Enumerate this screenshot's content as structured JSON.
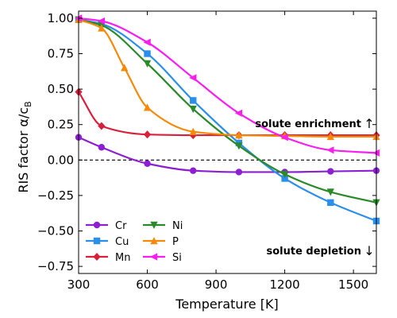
{
  "chart_data": {
    "type": "line",
    "xlabel": "Temperature [K]",
    "ylabel": "RIS factor α/c",
    "ylabel_sub": "B",
    "xlim": [
      300,
      1600
    ],
    "ylim": [
      -0.8,
      1.05
    ],
    "xticks": [
      300,
      600,
      900,
      1200,
      1500
    ],
    "xtick_labels": [
      "300",
      "600",
      "900",
      "1200",
      "1500"
    ],
    "yticks": [
      -0.75,
      -0.5,
      -0.25,
      0.0,
      0.25,
      0.5,
      0.75,
      1.0
    ],
    "ytick_labels": [
      "−0.75",
      "−0.50",
      "−0.25",
      "0.00",
      "0.25",
      "0.50",
      "0.75",
      "1.00"
    ],
    "reference_line_y": 0,
    "legend_position": "lower-left",
    "annotations": [
      {
        "text": "solute enrichment",
        "arrow": "↑"
      },
      {
        "text": "solute depletion",
        "arrow": "↓"
      }
    ],
    "series": [
      {
        "name": "Cr",
        "color": "#8b1fd1",
        "marker": "circle",
        "x": [
          300,
          400,
          600,
          800,
          1000,
          1200,
          1400,
          1600
        ],
        "y": [
          0.16,
          0.09,
          -0.025,
          -0.075,
          -0.085,
          -0.085,
          -0.08,
          -0.075
        ]
      },
      {
        "name": "Cu",
        "color": "#2a8fea",
        "marker": "square",
        "x": [
          300,
          400,
          600,
          800,
          1000,
          1200,
          1400,
          1600
        ],
        "y": [
          0.99,
          0.96,
          0.75,
          0.42,
          0.12,
          -0.13,
          -0.3,
          -0.43
        ]
      },
      {
        "name": "Mn",
        "color": "#d8203a",
        "marker": "diamond",
        "x": [
          300,
          400,
          600,
          800,
          1000,
          1200,
          1400,
          1600
        ],
        "y": [
          0.48,
          0.24,
          0.18,
          0.175,
          0.175,
          0.175,
          0.175,
          0.175
        ]
      },
      {
        "name": "Ni",
        "color": "#2a8a2a",
        "marker": "triangle-down",
        "x": [
          300,
          400,
          600,
          800,
          1000,
          1200,
          1400,
          1600
        ],
        "y": [
          0.99,
          0.95,
          0.68,
          0.36,
          0.1,
          -0.1,
          -0.225,
          -0.3
        ]
      },
      {
        "name": "P",
        "color": "#f58a0a",
        "marker": "triangle-up",
        "x": [
          300,
          400,
          500,
          600,
          800,
          1000,
          1200,
          1400,
          1600
        ],
        "y": [
          0.99,
          0.93,
          0.65,
          0.37,
          0.2,
          0.175,
          0.17,
          0.165,
          0.165
        ]
      },
      {
        "name": "Si",
        "color": "#f81ef0",
        "marker": "triangle-left",
        "x": [
          300,
          400,
          600,
          800,
          1000,
          1200,
          1400,
          1600
        ],
        "y": [
          1.0,
          0.98,
          0.83,
          0.58,
          0.33,
          0.16,
          0.07,
          0.05
        ]
      }
    ]
  }
}
